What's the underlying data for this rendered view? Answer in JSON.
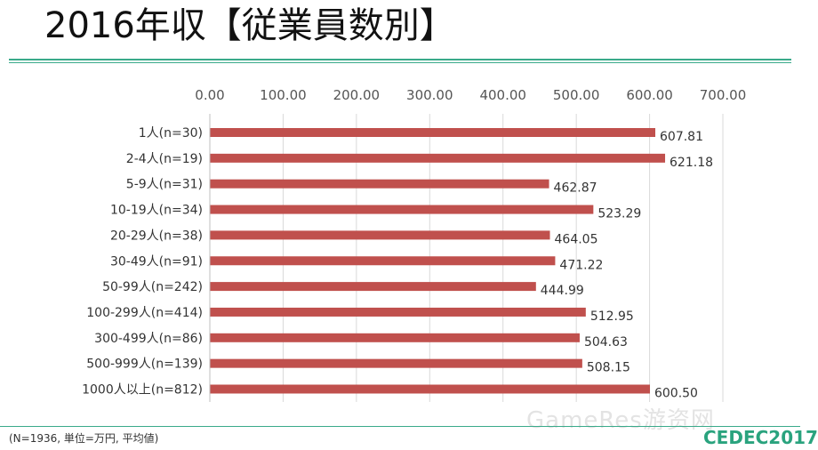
{
  "page": {
    "title": "2016年収【従業員数別】",
    "footnote": "(N=1936, 単位=万円, 平均値)",
    "watermark": "GameRes游资网",
    "logo": "CEDEC2017"
  },
  "colors": {
    "bar": "#c0504d",
    "rule": "#3aaa8a",
    "grid": "#d9d9d9",
    "logo": "#2aa37e"
  },
  "chart_data": {
    "type": "bar",
    "orientation": "horizontal",
    "title": "",
    "xlabel": "",
    "ylabel": "",
    "xlim": [
      0,
      700
    ],
    "x_ticks": [
      0,
      100,
      200,
      300,
      400,
      500,
      600,
      700
    ],
    "x_tick_labels": [
      "0.00",
      "100.00",
      "200.00",
      "300.00",
      "400.00",
      "500.00",
      "600.00",
      "700.00"
    ],
    "x_axis_position": "top",
    "grid": true,
    "legend": "none",
    "categories": [
      "1人(n=30)",
      "2-4人(n=19)",
      "5-9人(n=31)",
      "10-19人(n=34)",
      "20-29人(n=38)",
      "30-49人(n=91)",
      "50-99人(n=242)",
      "100-299人(n=414)",
      "300-499人(n=86)",
      "500-999人(n=139)",
      "1000人以上(n=812)"
    ],
    "values": [
      607.81,
      621.18,
      462.87,
      523.29,
      464.05,
      471.22,
      444.99,
      512.95,
      504.63,
      508.15,
      600.5
    ],
    "data_labels": [
      "607.81",
      "621.18",
      "462.87",
      "523.29",
      "464.05",
      "471.22",
      "444.99",
      "512.95",
      "504.63",
      "508.15",
      "600.50"
    ]
  }
}
